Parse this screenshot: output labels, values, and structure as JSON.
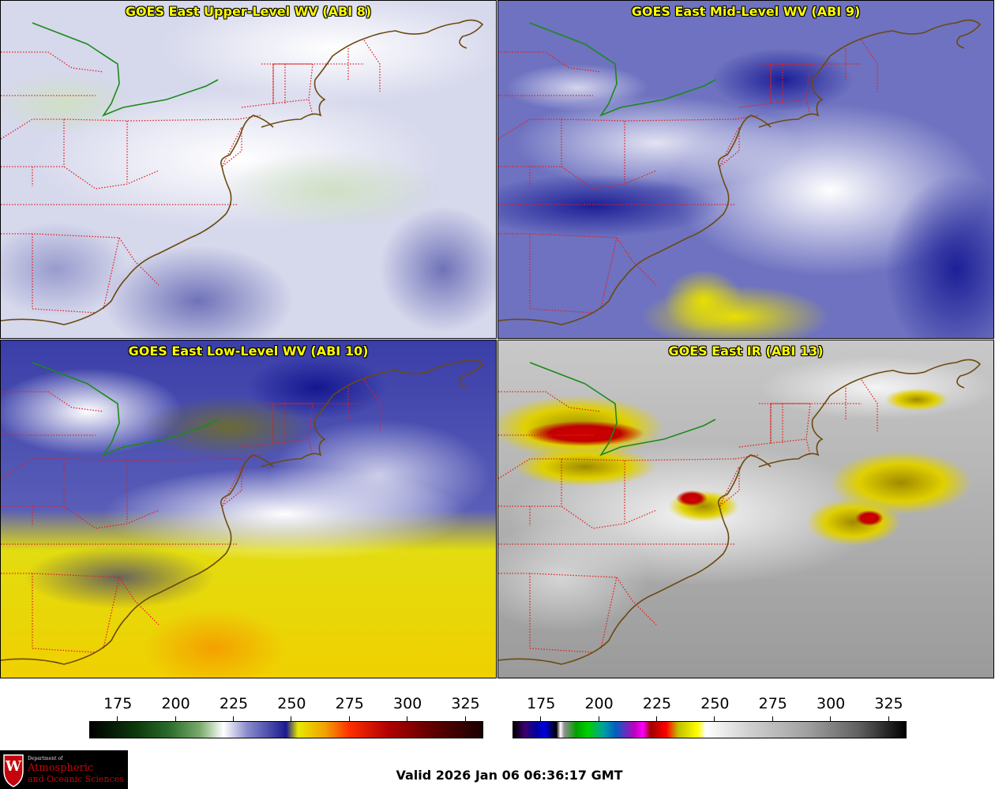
{
  "panels": [
    {
      "id": "upper",
      "title": "GOES East Upper-Level WV (ABI 8)"
    },
    {
      "id": "mid",
      "title": "GOES East Mid-Level WV (ABI 9)"
    },
    {
      "id": "low",
      "title": "GOES East Low-Level WV (ABI 10)"
    },
    {
      "id": "ir",
      "title": "GOES East IR (ABI 13)"
    }
  ],
  "colorbars": [
    {
      "id": "wv",
      "ticks": [
        "175",
        "200",
        "225",
        "250",
        "275",
        "300",
        "325"
      ],
      "range": [
        163,
        333
      ]
    },
    {
      "id": "ir",
      "ticks": [
        "175",
        "200",
        "225",
        "250",
        "275",
        "300",
        "325"
      ],
      "range": [
        163,
        333
      ]
    }
  ],
  "valid_time": "Valid 2026 Jan 06 06:36:17 GMT",
  "logo": {
    "line1": "Department of",
    "line2": "Atmospheric",
    "line3": "and Oceanic Sciences",
    "crest": "W"
  },
  "colors": {
    "state_borders": "#e02020",
    "coastline": "#6b4a10",
    "great_lakes_border": "#1a8a1a",
    "title_text": "#ffff00"
  }
}
